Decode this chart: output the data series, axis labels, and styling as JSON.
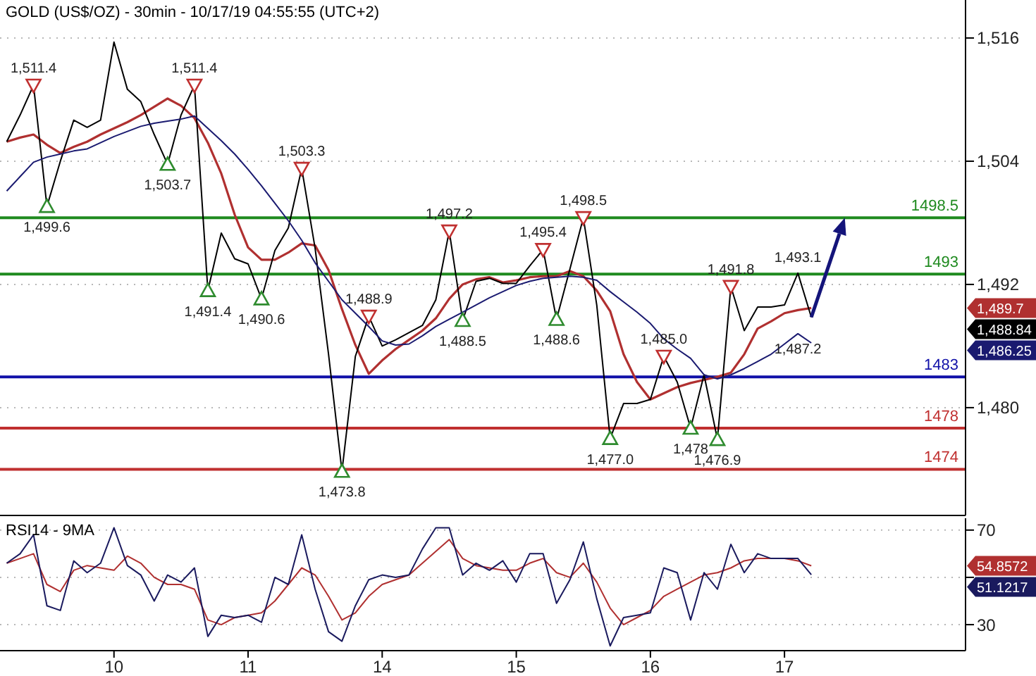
{
  "chart_data": [
    {
      "type": "line",
      "title": "GOLD (US$/OZ) - 30min - 10/17/19 04:55:55 (UTC+2)",
      "categories": [
        null,
        null,
        null,
        null,
        null,
        null,
        null,
        null,
        "10",
        null,
        null,
        null,
        null,
        null,
        null,
        null,
        null,
        null,
        "11",
        null,
        null,
        null,
        null,
        null,
        null,
        null,
        null,
        null,
        "14",
        null,
        null,
        null,
        null,
        null,
        null,
        null,
        null,
        null,
        "15",
        null,
        null,
        null,
        null,
        null,
        null,
        null,
        null,
        null,
        "16",
        null,
        null,
        null,
        null,
        null,
        null,
        null,
        null,
        null,
        "17",
        null,
        null,
        null,
        null,
        null,
        null,
        null,
        null,
        null,
        null,
        null,
        null,
        null
      ],
      "ylim": [
        1469.5,
        1519.7
      ],
      "yticks": [
        {
          "value": 1480,
          "label": "1,480"
        },
        {
          "value": 1492,
          "label": "1,492"
        },
        {
          "value": 1504,
          "label": "1,504"
        },
        {
          "value": 1516,
          "label": "1,516"
        }
      ],
      "grid": "y",
      "tick_labels": "y",
      "line_style": "solid",
      "series": [
        {
          "color": "#b03030",
          "values": [
            1505.9,
            1506.3,
            1506.6,
            1505.6,
            1504.8,
            1505.4,
            1505.9,
            1506.6,
            1507.2,
            1507.8,
            1508.5,
            1509.3,
            1510.1,
            1509.4,
            1508.2,
            1505.8,
            1502.8,
            1498.8,
            1495.6,
            1494.4,
            1494.4,
            1495.1,
            1496.0,
            1495.8,
            1493.4,
            1489.6,
            1486.1,
            1483.3,
            1484.6,
            1485.7,
            1486.6,
            1487.5,
            1488.7,
            1490.6,
            1492.0,
            1492.5,
            1492.7,
            1492.2,
            1492.4,
            1492.7,
            1492.8,
            1492.8,
            1493.3,
            1492.8,
            1491.4,
            1489.4,
            1485.2,
            1482.5,
            1480.8,
            1481.4,
            1482.0,
            1482.4,
            1482.7,
            1483.0,
            1483.4,
            1485.2,
            1487.7,
            1488.4,
            1489.2,
            1489.5,
            1489.7,
            null,
            null,
            null,
            null,
            null,
            null,
            null,
            null,
            null,
            null,
            null
          ]
        },
        {
          "color": "#000000",
          "values": [
            1505.9,
            1508.5,
            1511.4,
            1499.6,
            1504,
            1508.0,
            1507.3,
            1508.0,
            1515.6,
            1511,
            1509.8,
            1506.6,
            1503.7,
            1508.5,
            1511.4,
            1491.4,
            1497.0,
            1494.5,
            1494.0,
            1490.6,
            1495.3,
            1497.5,
            1503.3,
            1495.5,
            1485.2,
            1473.8,
            1485.0,
            1488.9,
            1486.0,
            1486.6,
            1487.3,
            1488.0,
            1490.5,
            1497.2,
            1488.5,
            1492.3,
            1492.6,
            1492.1,
            1492.1,
            1493.8,
            1495.4,
            1488.6,
            1493.5,
            1498.5,
            1490,
            1477.0,
            1480.4,
            1480.4,
            1480.8,
            1485.0,
            1482.5,
            1478.0,
            1483.2,
            1476.9,
            1491.8,
            1487.5,
            1489.8,
            1489.8,
            1490.0,
            1493.1,
            1488.8,
            null,
            null,
            null,
            null,
            null,
            null,
            null,
            null,
            null,
            null,
            null
          ],
          "value_labels": [
            null,
            null,
            null,
            null,
            null,
            null,
            null,
            null,
            null,
            null,
            null,
            null,
            null,
            null,
            null,
            null,
            null,
            null,
            null,
            null,
            null,
            null,
            null,
            null,
            null,
            null,
            null,
            null,
            null,
            null,
            null,
            null,
            null,
            null,
            null,
            null,
            null,
            null,
            null,
            null,
            null,
            null,
            null,
            null,
            null,
            null,
            null,
            null,
            null,
            null,
            null,
            null,
            null,
            null,
            null,
            null,
            null,
            null,
            null,
            "1,493.1",
            null,
            null,
            null,
            null,
            null,
            null,
            null,
            null,
            null,
            null,
            null,
            null
          ]
        },
        {
          "color": "#1a1a70",
          "values": [
            1501.1,
            1502.5,
            1503.9,
            1504.4,
            1504.7,
            1505.0,
            1505.2,
            1505.8,
            1506.4,
            1506.9,
            1507.4,
            1507.7,
            1507.9,
            1508.1,
            1508.4,
            1507.2,
            1506.0,
            1504.7,
            1503.2,
            1501.6,
            1499.9,
            1498.2,
            1496.3,
            1494.1,
            1492.3,
            1490.5,
            1489.2,
            1487.9,
            1486.5,
            1486.1,
            1486.2,
            1487.0,
            1487.9,
            1488.6,
            1489.3,
            1490.0,
            1490.7,
            1491.3,
            1491.9,
            1492.3,
            1492.6,
            1492.7,
            1492.8,
            1492.7,
            1492.4,
            1491.3,
            1490.3,
            1489.3,
            1488.2,
            1486.7,
            1485.7,
            1484.8,
            1483.2,
            1482.8,
            1483.2,
            1483.8,
            1484.5,
            1485.2,
            1486.2,
            1487.2,
            1486.3,
            null,
            null,
            null,
            null,
            null,
            null,
            null,
            null,
            null,
            null,
            null
          ],
          "value_labels": [
            null,
            null,
            null,
            null,
            null,
            null,
            null,
            null,
            null,
            null,
            null,
            null,
            null,
            null,
            null,
            null,
            null,
            null,
            null,
            null,
            null,
            null,
            null,
            null,
            null,
            null,
            null,
            null,
            null,
            null,
            null,
            null,
            null,
            null,
            null,
            null,
            null,
            null,
            null,
            null,
            null,
            null,
            null,
            null,
            null,
            null,
            null,
            null,
            null,
            null,
            null,
            null,
            null,
            null,
            null,
            null,
            null,
            null,
            null,
            "1,487.2",
            null,
            null,
            null,
            null,
            null,
            null,
            null,
            null,
            null,
            null,
            null,
            null
          ]
        },
        {
          "type": "scatter",
          "marker": "triangle",
          "color": "#c03030",
          "values": [
            null,
            null,
            1511.4,
            null,
            null,
            null,
            null,
            null,
            null,
            null,
            null,
            null,
            null,
            null,
            1511.4,
            null,
            null,
            null,
            null,
            null,
            null,
            null,
            1503.3,
            null,
            null,
            null,
            null,
            1488.9,
            null,
            null,
            null,
            null,
            null,
            1497.2,
            null,
            null,
            null,
            null,
            null,
            null,
            1495.4,
            null,
            null,
            1498.5,
            null,
            null,
            null,
            null,
            null,
            1485.0,
            null,
            null,
            null,
            null,
            1491.8,
            null,
            null,
            null,
            null,
            null,
            null,
            null,
            null,
            null,
            null,
            null,
            null,
            null,
            null,
            null,
            null,
            null
          ],
          "value_labels": [
            null,
            null,
            "1,511.4",
            null,
            null,
            null,
            null,
            null,
            null,
            null,
            null,
            null,
            null,
            null,
            "1,511.4",
            null,
            null,
            null,
            null,
            null,
            null,
            null,
            "1,503.3",
            null,
            null,
            null,
            null,
            "1,488.9",
            null,
            null,
            null,
            null,
            null,
            "1,497.2",
            null,
            null,
            null,
            null,
            null,
            null,
            "1,495.4",
            null,
            null,
            "1,498.5",
            null,
            null,
            null,
            null,
            null,
            "1,485.0",
            null,
            null,
            null,
            null,
            "1,491.8",
            null,
            null,
            null,
            null,
            null,
            null,
            null,
            null,
            null,
            null,
            null,
            null,
            null,
            null,
            null,
            null,
            null
          ]
        },
        {
          "type": "scatter",
          "marker": "triangle",
          "color": "#2e8b2e",
          "values": [
            null,
            null,
            null,
            1499.6,
            null,
            null,
            null,
            null,
            null,
            null,
            null,
            null,
            1503.7,
            null,
            null,
            1491.4,
            null,
            null,
            null,
            1490.6,
            null,
            null,
            null,
            null,
            null,
            1473.8,
            null,
            null,
            null,
            null,
            null,
            null,
            null,
            null,
            1488.5,
            null,
            null,
            null,
            null,
            null,
            null,
            1488.6,
            null,
            null,
            null,
            1477.0,
            null,
            null,
            null,
            null,
            null,
            1478,
            null,
            1476.9,
            null,
            null,
            null,
            null,
            null,
            null,
            null,
            null,
            null,
            null,
            null,
            null,
            null,
            null,
            null,
            null,
            null,
            null
          ],
          "value_labels": [
            null,
            null,
            null,
            "1,499.6",
            null,
            null,
            null,
            null,
            null,
            null,
            null,
            null,
            "1,503.7",
            null,
            null,
            "1,491.4",
            null,
            null,
            null,
            "1,490.6",
            null,
            null,
            null,
            null,
            null,
            "1,473.8",
            null,
            null,
            null,
            null,
            null,
            null,
            null,
            null,
            "1,488.5",
            null,
            null,
            null,
            null,
            null,
            null,
            "1,488.6",
            null,
            null,
            null,
            "1,477.0",
            null,
            null,
            null,
            null,
            null,
            "1,478",
            null,
            "1,476.9",
            null,
            null,
            null,
            null,
            null,
            null,
            null,
            null,
            null,
            null,
            null,
            null,
            null,
            null,
            null,
            null,
            null,
            null
          ]
        }
      ],
      "ref_lines": [
        {
          "axis": "y",
          "value": 1498.5,
          "label": "1498.5",
          "color": "#1f8a1f"
        },
        {
          "axis": "y",
          "value": 1493,
          "label": "1493",
          "color": "#1f8a1f"
        },
        {
          "axis": "y",
          "value": 1483,
          "label": "1483",
          "color": "#1010a8"
        },
        {
          "axis": "y",
          "value": 1478,
          "label": "1478",
          "color": "#c03030"
        },
        {
          "axis": "y",
          "value": 1474,
          "label": "1474",
          "color": "#c03030"
        }
      ],
      "annotations": [
        "1,489.7",
        "1,488.84",
        "1,486.25"
      ]
    },
    {
      "type": "line",
      "title": "RSI14 - 9MA",
      "categories": [
        null,
        null,
        null,
        null,
        null,
        null,
        null,
        null,
        "10",
        null,
        null,
        null,
        null,
        null,
        null,
        null,
        null,
        null,
        "11",
        null,
        null,
        null,
        null,
        null,
        null,
        null,
        null,
        null,
        "14",
        null,
        null,
        null,
        null,
        null,
        null,
        null,
        null,
        null,
        "15",
        null,
        null,
        null,
        null,
        null,
        null,
        null,
        null,
        null,
        "16",
        null,
        null,
        null,
        null,
        null,
        null,
        null,
        null,
        null,
        "17",
        null,
        null,
        null,
        null,
        null,
        null,
        null,
        null,
        null,
        null,
        null,
        null,
        null
      ],
      "ylim": [
        19,
        75
      ],
      "yticks": [
        30,
        {
          "value": 50,
          "label": null
        },
        70
      ],
      "grid": "y",
      "line_style": "solid",
      "series": [
        {
          "color": "#b03030",
          "values": [
            56,
            58,
            60,
            47,
            44,
            53,
            55,
            54,
            53,
            59,
            56,
            50,
            47,
            47,
            45,
            32,
            30,
            33,
            34,
            35,
            40,
            47,
            54,
            51,
            42,
            32,
            35,
            42,
            47,
            49,
            51,
            56,
            61,
            66,
            58,
            55,
            54,
            53,
            53,
            56,
            58,
            52,
            50,
            56,
            48,
            37,
            30,
            33,
            36,
            42,
            45,
            48,
            51,
            52,
            54,
            57,
            58,
            58,
            58,
            57,
            54.9,
            null,
            null,
            null,
            null,
            null,
            null,
            null,
            null,
            null,
            null,
            null
          ]
        },
        {
          "color": "#1a1a5e",
          "values": [
            56,
            60,
            68,
            38,
            36,
            57,
            52,
            56,
            71,
            55,
            51,
            40,
            51,
            48,
            54,
            25,
            34,
            33,
            34,
            31,
            50,
            47,
            68,
            45,
            27,
            23,
            38,
            49,
            51,
            50,
            51,
            62,
            71,
            71,
            51,
            56,
            53,
            57,
            48,
            60,
            60,
            39,
            49,
            65,
            41,
            21,
            33,
            34,
            35,
            54,
            52,
            32,
            52,
            45,
            64,
            52,
            60,
            58,
            58,
            58,
            51.1,
            null,
            null,
            null,
            null,
            null,
            null,
            null,
            null,
            null,
            null,
            null
          ]
        }
      ],
      "annotations": [
        "54.8572",
        "51.1217"
      ]
    }
  ]
}
